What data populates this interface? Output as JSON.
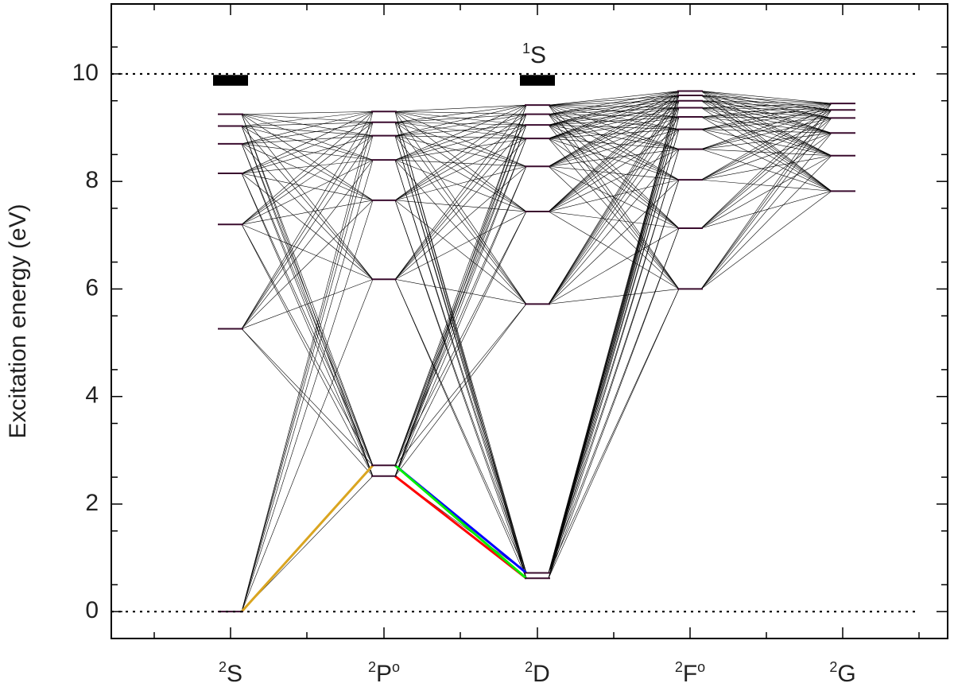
{
  "chart_data": {
    "type": "energy-level-diagram",
    "ylabel": "Excitation energy (eV)",
    "ylim": [
      -0.5,
      11.3
    ],
    "yticks": [
      "0",
      "2",
      "4",
      "6",
      "8",
      "10"
    ],
    "limit_levels": [
      {
        "energy": 0
      },
      {
        "energy": 10,
        "label": {
          "sup": "1",
          "main": "S"
        }
      }
    ],
    "terms": [
      {
        "sup": "2",
        "main": "S",
        "post": "",
        "levels": [
          0,
          5.26,
          7.2,
          8.15,
          8.7,
          9.03,
          9.25
        ],
        "dense_band": [
          9.78,
          9.98
        ]
      },
      {
        "sup": "2",
        "main": "P",
        "post": "o",
        "levels": [
          2.52,
          2.72,
          6.18,
          7.65,
          8.4,
          8.85,
          9.1,
          9.3
        ],
        "dense_band": null
      },
      {
        "sup": "2",
        "main": "D",
        "post": "",
        "levels": [
          0.62,
          0.72,
          5.72,
          7.44,
          8.28,
          8.8,
          9.05,
          9.25,
          9.42
        ],
        "dense_band": [
          9.78,
          9.98
        ]
      },
      {
        "sup": "2",
        "main": "F",
        "post": "o",
        "levels": [
          6.0,
          7.13,
          8.03,
          8.6,
          8.97,
          9.2,
          9.37,
          9.5,
          9.6,
          9.68
        ],
        "dense_band": null
      },
      {
        "sup": "2",
        "main": "G",
        "post": "",
        "levels": [
          7.82,
          8.48,
          8.9,
          9.18,
          9.33,
          9.45
        ],
        "dense_band": null
      }
    ],
    "highlighted_transitions": [
      {
        "from": [
          0,
          0
        ],
        "to": [
          1,
          1
        ],
        "color": "#daa520"
      },
      {
        "from": [
          1,
          0
        ],
        "to": [
          2,
          0
        ],
        "color": "#ff0000"
      },
      {
        "from": [
          1,
          1
        ],
        "to": [
          2,
          1
        ],
        "color": "#0000ff"
      },
      {
        "from": [
          1,
          1
        ],
        "to": [
          2,
          0
        ],
        "color": "#00ee00"
      }
    ],
    "colors": {
      "level": "#3a0c2e",
      "transition": "#000000"
    }
  }
}
